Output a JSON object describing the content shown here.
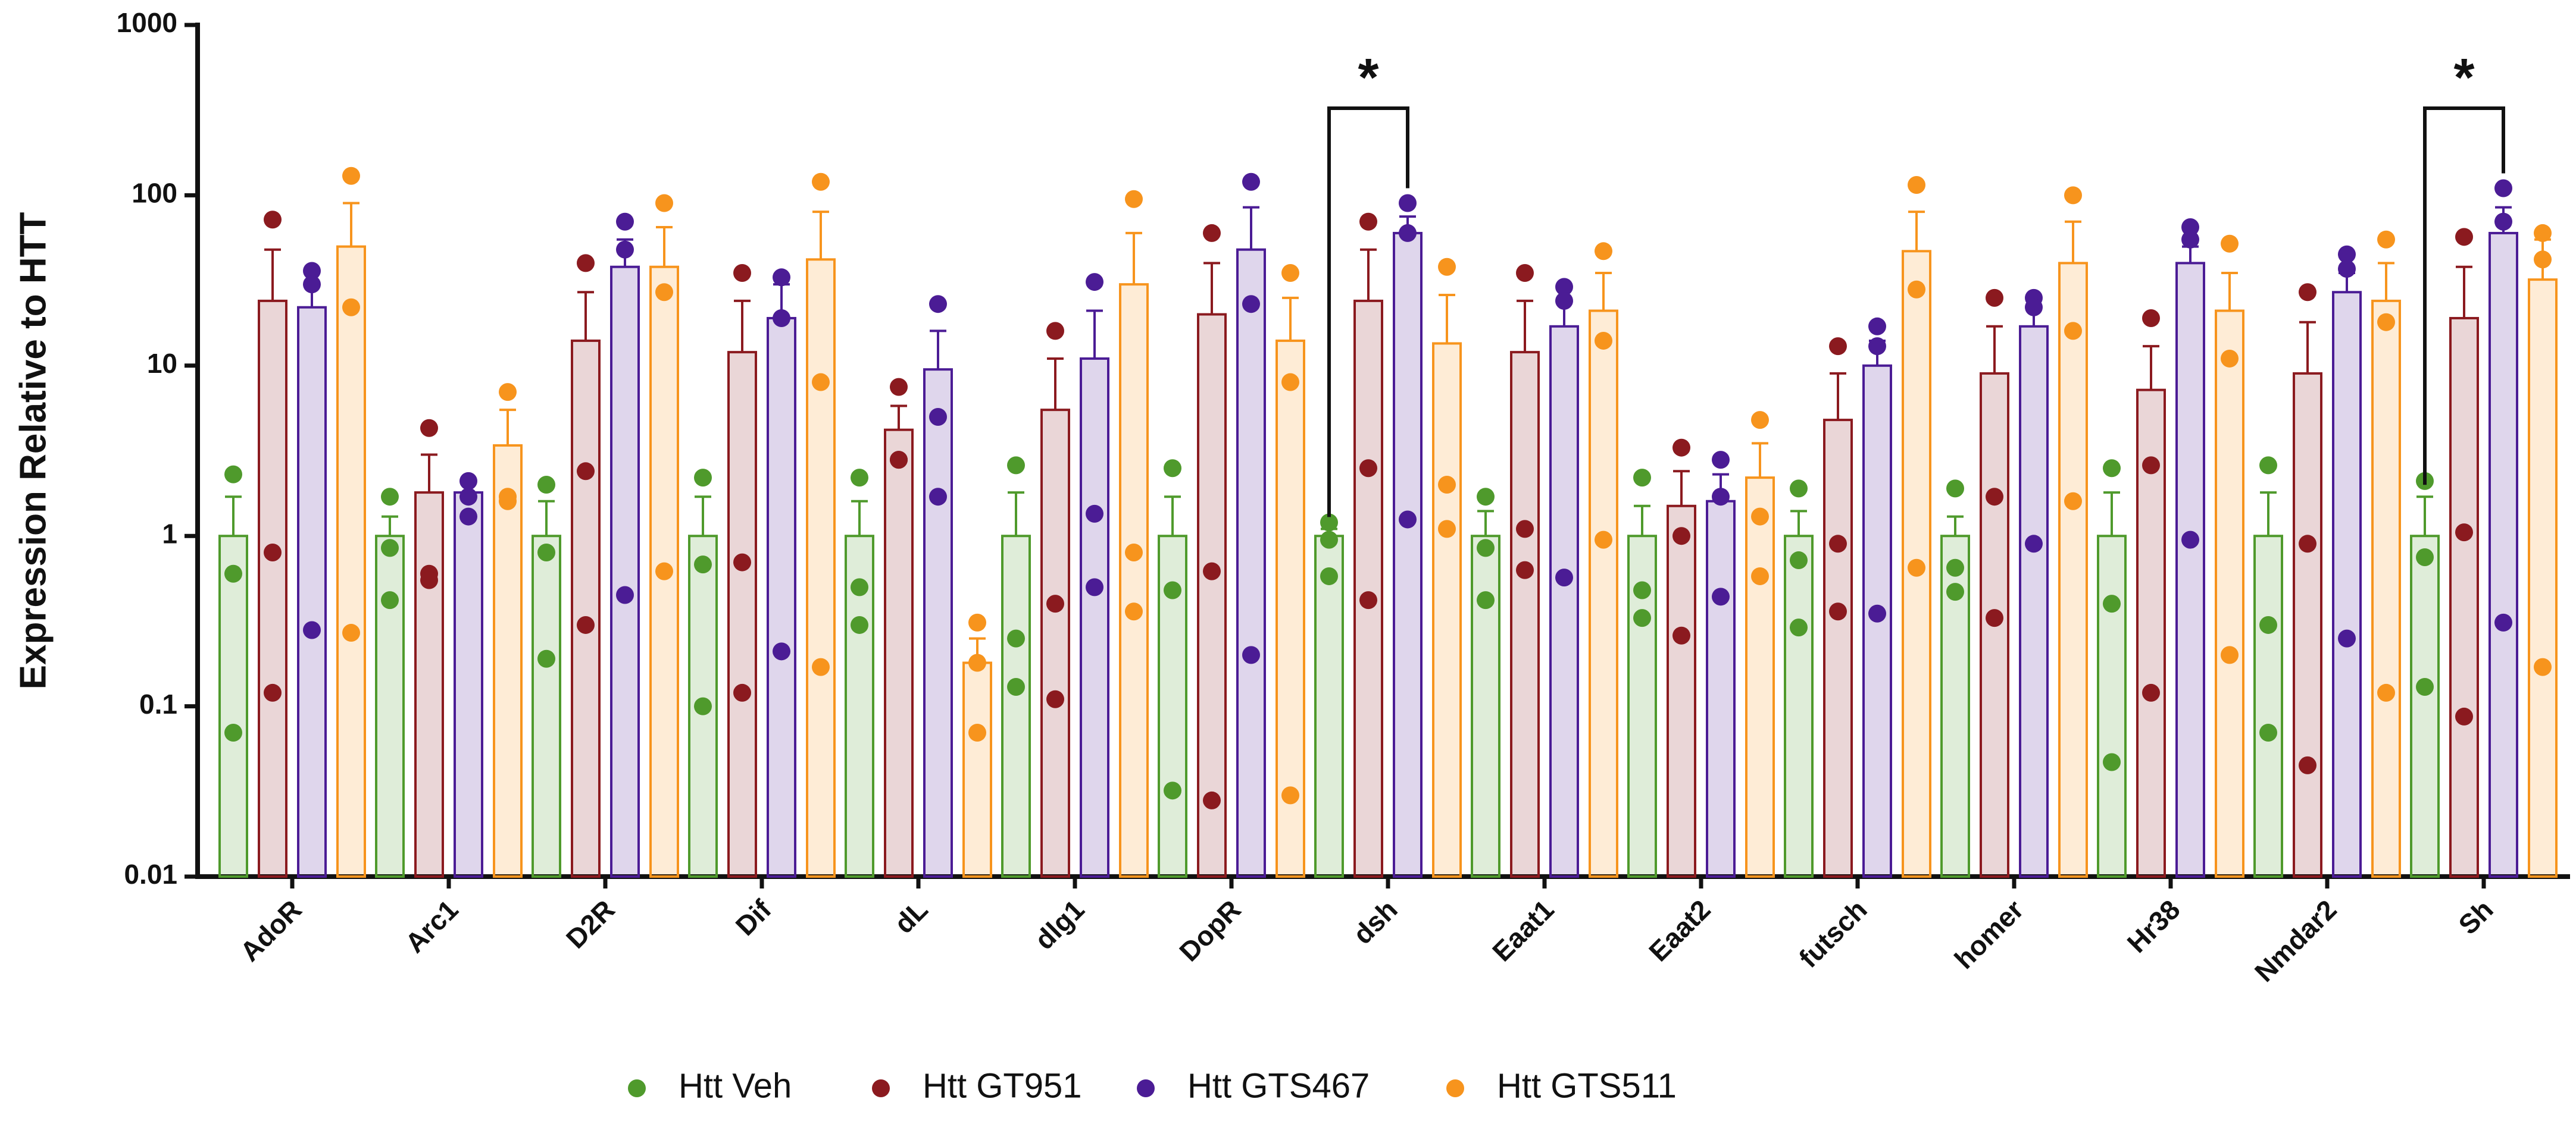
{
  "chart_data": {
    "type": "bar",
    "y_label": "Expression Relative to HTT",
    "log_scale": true,
    "ylim": [
      0.01,
      1000
    ],
    "yticks": [
      0.01,
      0.1,
      1,
      10,
      100,
      1000
    ],
    "categories": [
      "AdoR",
      "Arc1",
      "D2R",
      "Dif",
      "dL",
      "dlg1",
      "DopR",
      "dsh",
      "Eaat1",
      "Eaat2",
      "futsch",
      "homer",
      "Hr38",
      "Nmdar2",
      "Sh"
    ],
    "series": [
      {
        "name": "Htt Veh",
        "color": "#4f9a2c",
        "values": [
          1,
          1,
          1,
          1,
          1,
          1,
          1,
          1,
          1,
          1,
          1,
          1,
          1,
          1,
          1
        ],
        "error_top": [
          1.7,
          1.3,
          1.6,
          1.7,
          1.6,
          1.8,
          1.7,
          1.1,
          1.4,
          1.5,
          1.4,
          1.3,
          1.8,
          1.8,
          1.7
        ],
        "points": [
          [
            2.3,
            0.6,
            0.07
          ],
          [
            1.7,
            0.85,
            0.42
          ],
          [
            2,
            0.8,
            0.19
          ],
          [
            2.2,
            0.68,
            0.1
          ],
          [
            2.2,
            0.5,
            0.3
          ],
          [
            2.6,
            0.25,
            0.13
          ],
          [
            2.5,
            0.48,
            0.032
          ],
          [
            1.2,
            0.95,
            0.58
          ],
          [
            1.7,
            0.85,
            0.42
          ],
          [
            2.2,
            0.48,
            0.33
          ],
          [
            1.9,
            0.72,
            0.29
          ],
          [
            1.9,
            0.65,
            0.47
          ],
          [
            2.5,
            0.4,
            0.047
          ],
          [
            2.6,
            0.3,
            0.07
          ],
          [
            2.1,
            0.75,
            0.13
          ]
        ]
      },
      {
        "name": "Htt GT951",
        "color": "#8b1a1f",
        "values": [
          24,
          1.8,
          14,
          12,
          4.2,
          5.5,
          20,
          24,
          12,
          1.5,
          4.8,
          9,
          7.2,
          9,
          19
        ],
        "error_top": [
          48,
          3,
          27,
          24,
          5.8,
          11,
          40,
          48,
          24,
          2.4,
          9,
          17,
          13,
          18,
          38
        ],
        "points": [
          [
            72,
            0.8,
            0.12
          ],
          [
            4.3,
            0.6,
            0.55
          ],
          [
            40,
            2.4,
            0.3
          ],
          [
            35,
            0.7,
            0.12
          ],
          [
            7.5,
            2.8,
            2.8
          ],
          [
            16,
            0.4,
            0.11
          ],
          [
            60,
            0.62,
            0.028
          ],
          [
            70,
            2.5,
            0.42
          ],
          [
            35,
            1.1,
            0.63
          ],
          [
            3.3,
            1,
            0.26
          ],
          [
            13,
            0.9,
            0.36
          ],
          [
            25,
            1.7,
            0.33
          ],
          [
            19,
            2.6,
            0.12
          ],
          [
            27,
            0.9,
            0.045
          ],
          [
            57,
            1.05,
            0.087
          ]
        ]
      },
      {
        "name": "Htt GTS467",
        "color": "#4b1c95",
        "values": [
          22,
          1.8,
          38,
          19,
          9.5,
          11,
          48,
          60,
          17,
          1.6,
          10,
          17,
          40,
          27,
          60
        ],
        "error_top": [
          30,
          2.1,
          55,
          30,
          16,
          21,
          85,
          75,
          24,
          2.3,
          14,
          25,
          50,
          35,
          85
        ],
        "points": [
          [
            36,
            30,
            0.28
          ],
          [
            2.1,
            1.7,
            1.3
          ],
          [
            70,
            48,
            0.45
          ],
          [
            33,
            19,
            0.21
          ],
          [
            23,
            5,
            1.7
          ],
          [
            31,
            1.35,
            0.5
          ],
          [
            120,
            23,
            0.2
          ],
          [
            90,
            60,
            1.25
          ],
          [
            29,
            24,
            0.57
          ],
          [
            2.8,
            1.7,
            0.44
          ],
          [
            17,
            13,
            0.35
          ],
          [
            25,
            22,
            0.9
          ],
          [
            65,
            55,
            0.95
          ],
          [
            45,
            37,
            0.25
          ],
          [
            110,
            70,
            0.31
          ]
        ]
      },
      {
        "name": "Htt GTS511",
        "color": "#f7941d",
        "values": [
          50,
          3.4,
          38,
          42,
          0.18,
          30,
          14,
          13.5,
          21,
          2.2,
          47,
          40,
          21,
          24,
          32
        ],
        "error_top": [
          90,
          5.5,
          65,
          80,
          0.25,
          60,
          25,
          26,
          35,
          3.5,
          80,
          70,
          35,
          40,
          55
        ],
        "points": [
          [
            130,
            22,
            0.27
          ],
          [
            7,
            1.7,
            1.6
          ],
          [
            90,
            27,
            0.62
          ],
          [
            120,
            8,
            0.17
          ],
          [
            0.31,
            0.18,
            0.07
          ],
          [
            95,
            0.8,
            0.36
          ],
          [
            35,
            8,
            0.03
          ],
          [
            38,
            2,
            1.1
          ],
          [
            47,
            14,
            0.95
          ],
          [
            4.8,
            1.3,
            0.58
          ],
          [
            115,
            28,
            0.65
          ],
          [
            100,
            16,
            1.6
          ],
          [
            52,
            11,
            0.2
          ],
          [
            55,
            18,
            0.12
          ],
          [
            60,
            42,
            0.17
          ]
        ]
      }
    ],
    "annotations": [
      {
        "text": "*",
        "category": "dsh"
      },
      {
        "text": "*",
        "category": "Sh"
      }
    ]
  }
}
